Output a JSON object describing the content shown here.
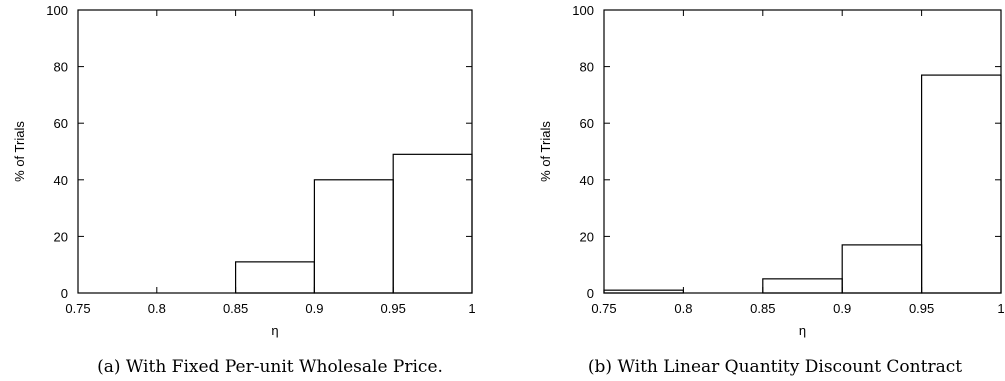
{
  "chart_data": [
    {
      "type": "bar",
      "caption": "(a) With Fixed Per-unit Wholesale Price.",
      "xlabel": "η",
      "ylabel": "% of Trials",
      "xlim": [
        0.75,
        1
      ],
      "ylim": [
        0,
        100
      ],
      "xticks": [
        "0.75",
        "0.8",
        "0.85",
        "0.9",
        "0.95",
        "1"
      ],
      "yticks": [
        "0",
        "20",
        "40",
        "60",
        "80",
        "100"
      ],
      "bins": [
        [
          0.75,
          0.8
        ],
        [
          0.8,
          0.85
        ],
        [
          0.85,
          0.9
        ],
        [
          0.9,
          0.95
        ],
        [
          0.95,
          1.0
        ]
      ],
      "values": [
        0,
        0,
        11,
        40,
        49
      ],
      "grid": false
    },
    {
      "type": "bar",
      "caption": "(b) With Linear Quantity Discount Contract",
      "xlabel": "η",
      "ylabel": "% of Trials",
      "xlim": [
        0.75,
        1
      ],
      "ylim": [
        0,
        100
      ],
      "xticks": [
        "0.75",
        "0.8",
        "0.85",
        "0.9",
        "0.95",
        "1"
      ],
      "yticks": [
        "0",
        "20",
        "40",
        "60",
        "80",
        "100"
      ],
      "bins": [
        [
          0.75,
          0.8
        ],
        [
          0.8,
          0.85
        ],
        [
          0.85,
          0.9
        ],
        [
          0.9,
          0.95
        ],
        [
          0.95,
          1.0
        ]
      ],
      "values": [
        1,
        0,
        5,
        17,
        77
      ],
      "grid": false
    }
  ]
}
